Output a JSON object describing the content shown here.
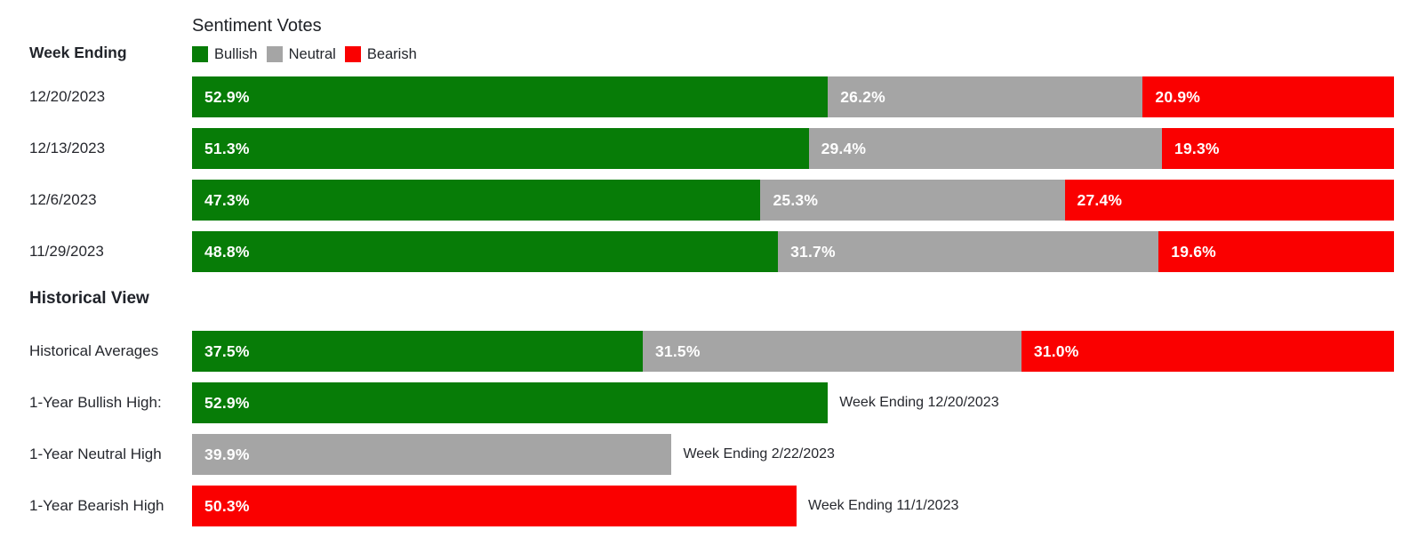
{
  "page": {
    "week_ending_header": "Week Ending",
    "historical_view_header": "Historical View"
  },
  "colors": {
    "bullish": "#077c07",
    "neutral": "#a5a5a5",
    "bearish": "#fa0000"
  },
  "chart": {
    "title": "Sentiment Votes",
    "legend": [
      {
        "label": "Bullish",
        "color": "#077c07"
      },
      {
        "label": "Neutral",
        "color": "#a5a5a5"
      },
      {
        "label": "Bearish",
        "color": "#fa0000"
      }
    ]
  },
  "weekly_rows": [
    {
      "date": "12/20/2023",
      "bullish": "52.9%",
      "neutral": "26.2%",
      "bearish": "20.9%"
    },
    {
      "date": "12/13/2023",
      "bullish": "51.3%",
      "neutral": "29.4%",
      "bearish": "19.3%"
    },
    {
      "date": "12/6/2023",
      "bullish": "47.3%",
      "neutral": "25.3%",
      "bearish": "27.4%"
    },
    {
      "date": "11/29/2023",
      "bullish": "48.8%",
      "neutral": "31.7%",
      "bearish": "19.6%"
    }
  ],
  "historical_average_row": {
    "label": "Historical Averages",
    "bullish": "37.5%",
    "neutral": "31.5%",
    "bearish": "31.0%"
  },
  "historical_high_rows": [
    {
      "label": "1-Year Bullish High:",
      "value": "52.9%",
      "color": "#077c07",
      "annotation": "Week Ending 12/20/2023"
    },
    {
      "label": "1-Year Neutral High",
      "value": "39.9%",
      "color": "#a5a5a5",
      "annotation": "Week Ending 2/22/2023"
    },
    {
      "label": "1-Year Bearish High",
      "value": "50.3%",
      "color": "#fa0000",
      "annotation": "Week Ending 11/1/2023"
    }
  ],
  "chart_data": {
    "type": "bar",
    "orientation": "horizontal",
    "stacked": true,
    "title": "Sentiment Votes",
    "legend_position": "top",
    "legend": [
      "Bullish",
      "Neutral",
      "Bearish"
    ],
    "legend_colors": {
      "Bullish": "#077c07",
      "Neutral": "#a5a5a5",
      "Bearish": "#fa0000"
    },
    "xlim": [
      0,
      100
    ],
    "categories": [
      "12/20/2023",
      "12/13/2023",
      "12/6/2023",
      "11/29/2023"
    ],
    "series": [
      {
        "name": "Bullish",
        "color": "#077c07",
        "values": [
          52.9,
          51.3,
          47.3,
          48.8
        ]
      },
      {
        "name": "Neutral",
        "color": "#a5a5a5",
        "values": [
          26.2,
          29.4,
          25.3,
          31.7
        ]
      },
      {
        "name": "Bearish",
        "color": "#fa0000",
        "values": [
          20.9,
          19.3,
          27.4,
          19.6
        ]
      }
    ],
    "historical": {
      "averages": {
        "Bullish": 37.5,
        "Neutral": 31.5,
        "Bearish": 31.0
      },
      "one_year_highs": [
        {
          "label": "1-Year Bullish High:",
          "series": "Bullish",
          "value": 52.9,
          "week_ending": "12/20/2023"
        },
        {
          "label": "1-Year Neutral High",
          "series": "Neutral",
          "value": 39.9,
          "week_ending": "2/22/2023"
        },
        {
          "label": "1-Year Bearish High",
          "series": "Bearish",
          "value": 50.3,
          "week_ending": "11/1/2023"
        }
      ]
    }
  }
}
